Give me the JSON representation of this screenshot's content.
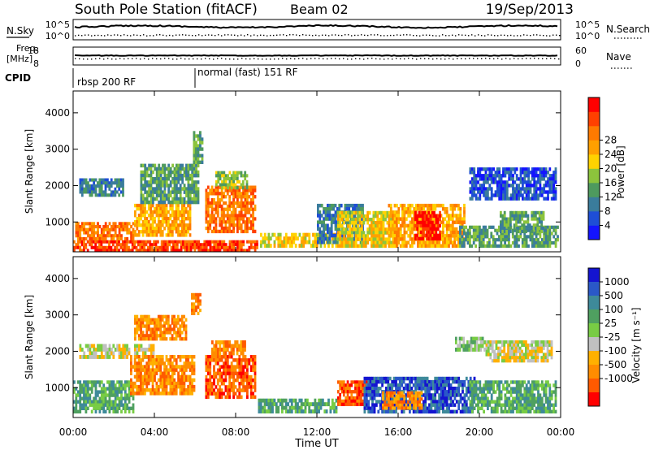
{
  "header": {
    "station": "South Pole Station (fitACF)",
    "beam": "Beam 02",
    "date": "19/Sep/2013"
  },
  "top_panels": {
    "nsky_label": "N.Sky",
    "nsearch_label": "N.Search",
    "freq_label_1": "Freq.",
    "freq_label_2": "[MHz]",
    "nave_label": "Nave",
    "cpid_label": "CPID",
    "nsky_ticks": [
      "10^5",
      "10^0"
    ],
    "nsearch_ticks": [
      "10^5",
      "10^0"
    ],
    "freq_ticks": [
      "18",
      "8"
    ],
    "nave_ticks": [
      "60",
      "0"
    ],
    "cpid_segments": [
      {
        "label": "rbsp 200 RF",
        "start_hour": 0
      },
      {
        "label": "normal (fast) 151 RF",
        "start_hour": 6
      }
    ]
  },
  "chart_data": [
    {
      "type": "heatmap",
      "panel": "power",
      "ylabel": "Slant Range [km]",
      "ylim": [
        180,
        4600
      ],
      "yticks": [
        "1000",
        "2000",
        "3000",
        "4000"
      ],
      "xlim_hours": [
        0,
        24
      ],
      "xticks": [
        "00:00",
        "04:00",
        "08:00",
        "12:00",
        "16:00",
        "20:00",
        "00:00"
      ],
      "colorbar": {
        "label": "Power [dB]",
        "ticks": [
          "4",
          "8",
          "12",
          "16",
          "20",
          "24",
          "28"
        ],
        "colors": [
          "#1414ff",
          "#1e4ed6",
          "#3a7c9c",
          "#4e9a5e",
          "#8cc43c",
          "#ffd200",
          "#ffa000",
          "#ff7a00",
          "#ff4000",
          "#ff0000"
        ]
      },
      "regions": [
        {
          "h0": 0.0,
          "h1": 9.1,
          "r0": 180,
          "r1": 500,
          "level": 8
        },
        {
          "h0": 0.1,
          "h1": 3.0,
          "r0": 500,
          "r1": 1000,
          "level": 7
        },
        {
          "h0": 0.3,
          "h1": 2.5,
          "r0": 1700,
          "r1": 2200,
          "level": 2
        },
        {
          "h0": 3.0,
          "h1": 5.8,
          "r0": 600,
          "r1": 1500,
          "level": 6
        },
        {
          "h0": 3.3,
          "h1": 6.2,
          "r0": 1500,
          "r1": 2600,
          "level": 3
        },
        {
          "h0": 6.5,
          "h1": 9.0,
          "r0": 700,
          "r1": 2000,
          "level": 7
        },
        {
          "h0": 7.0,
          "h1": 8.6,
          "r0": 1900,
          "r1": 2400,
          "level": 4
        },
        {
          "h0": 5.9,
          "h1": 6.4,
          "r0": 2600,
          "r1": 3500,
          "level": 3
        },
        {
          "h0": 9.2,
          "h1": 13.0,
          "r0": 300,
          "r1": 700,
          "level": 5
        },
        {
          "h0": 12.0,
          "h1": 14.3,
          "r0": 400,
          "r1": 1500,
          "level": 2
        },
        {
          "h0": 13.0,
          "h1": 16.0,
          "r0": 300,
          "r1": 1300,
          "level": 5
        },
        {
          "h0": 15.5,
          "h1": 19.3,
          "r0": 300,
          "r1": 1500,
          "level": 6
        },
        {
          "h0": 16.8,
          "h1": 18.1,
          "r0": 500,
          "r1": 1300,
          "level": 9
        },
        {
          "h0": 19.0,
          "h1": 23.9,
          "r0": 300,
          "r1": 900,
          "level": 3
        },
        {
          "h0": 19.5,
          "h1": 23.8,
          "r0": 1600,
          "r1": 2500,
          "level": 1
        },
        {
          "h0": 21.0,
          "h1": 23.2,
          "r0": 700,
          "r1": 1300,
          "level": 3
        }
      ]
    },
    {
      "type": "heatmap",
      "panel": "velocity",
      "ylabel": "Slant Range [km]",
      "ylim": [
        180,
        4600
      ],
      "yticks": [
        "1000",
        "2000",
        "3000",
        "4000"
      ],
      "xlim_hours": [
        0,
        24
      ],
      "xticks": [
        "00:00",
        "04:00",
        "08:00",
        "12:00",
        "16:00",
        "20:00",
        "00:00"
      ],
      "xlabel": "Time UT",
      "colorbar": {
        "label": "Velocity [m s⁻¹]",
        "ticks": [
          "1000",
          "500",
          "100",
          "25",
          "-25",
          "-100",
          "-500",
          "-1000"
        ],
        "colors": [
          "#1414d0",
          "#2a58c8",
          "#3e8a9a",
          "#4fa060",
          "#78cc44",
          "#c0c0c0",
          "#ffb000",
          "#ff8c00",
          "#ff5a00",
          "#ff0000"
        ]
      },
      "regions": [
        {
          "h0": 0.0,
          "h1": 3.0,
          "r0": 300,
          "r1": 1200,
          "level": 3
        },
        {
          "h0": 0.3,
          "h1": 2.8,
          "r0": 1800,
          "r1": 2200,
          "level": 5
        },
        {
          "h0": 3.0,
          "h1": 4.0,
          "r0": 1800,
          "r1": 2200,
          "level": 5
        },
        {
          "h0": 2.8,
          "h1": 6.0,
          "r0": 800,
          "r1": 1900,
          "level": 7
        },
        {
          "h0": 3.0,
          "h1": 5.6,
          "r0": 2300,
          "r1": 3000,
          "level": 7
        },
        {
          "h0": 5.8,
          "h1": 6.3,
          "r0": 3000,
          "r1": 3600,
          "level": 7
        },
        {
          "h0": 6.5,
          "h1": 9.0,
          "r0": 700,
          "r1": 1900,
          "level": 8
        },
        {
          "h0": 6.8,
          "h1": 8.5,
          "r0": 1900,
          "r1": 2300,
          "level": 7
        },
        {
          "h0": 9.1,
          "h1": 13.0,
          "r0": 300,
          "r1": 700,
          "level": 3
        },
        {
          "h0": 13.0,
          "h1": 14.5,
          "r0": 500,
          "r1": 1200,
          "level": 8
        },
        {
          "h0": 14.3,
          "h1": 19.8,
          "r0": 300,
          "r1": 1300,
          "level": 1
        },
        {
          "h0": 15.2,
          "h1": 17.2,
          "r0": 400,
          "r1": 900,
          "level": 7
        },
        {
          "h0": 19.5,
          "h1": 23.8,
          "r0": 300,
          "r1": 1200,
          "level": 3
        },
        {
          "h0": 20.3,
          "h1": 23.6,
          "r0": 1700,
          "r1": 2300,
          "level": 5
        },
        {
          "h0": 18.8,
          "h1": 20.3,
          "r0": 2000,
          "r1": 2400,
          "level": 4
        }
      ]
    }
  ]
}
